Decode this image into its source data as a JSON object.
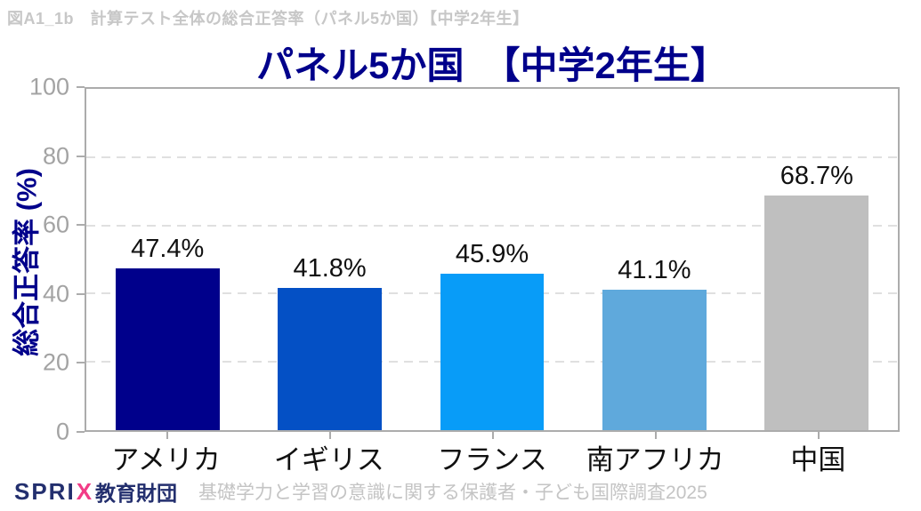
{
  "header": {
    "caption": "図A1_1b　計算テスト全体の総合正答率（パネル5か国）【中学2年生】"
  },
  "chart_data": {
    "type": "bar",
    "title": "パネル5か国　【中学2年生】",
    "xlabel": "",
    "ylabel": "総合正答率 (%)",
    "categories": [
      "アメリカ",
      "イギリス",
      "フランス",
      "南アフリカ",
      "中国"
    ],
    "values": [
      47.4,
      41.8,
      45.9,
      41.1,
      68.7
    ],
    "value_labels": [
      "47.4%",
      "41.8%",
      "45.9%",
      "41.1%",
      "68.7%"
    ],
    "bar_colors": [
      "#00008b",
      "#0450c5",
      "#089cf8",
      "#5fa9dc",
      "#bfbfbf"
    ],
    "ylim": [
      0,
      100
    ],
    "yticks": [
      0,
      20,
      40,
      60,
      80,
      100
    ],
    "grid": "horizontal dashed at 20/40/60/80, behind bars",
    "legend": "none"
  },
  "footer": {
    "logo_sprix": "SPRI",
    "logo_x": "X",
    "logo_org": "教育財団",
    "source": "基礎学力と学習の意識に関する保護者・子ども国際調査2025"
  },
  "colors": {
    "title": "#00008b",
    "axis_frame": "#acacac",
    "gridline": "#e0e0e0",
    "tick_label": "#a3a3a3",
    "data_label": "#111111",
    "caption": "#c7c7c7",
    "source_text": "#c4c4c4",
    "logo_navy": "#232f6e",
    "logo_pink": "#f23c87"
  }
}
